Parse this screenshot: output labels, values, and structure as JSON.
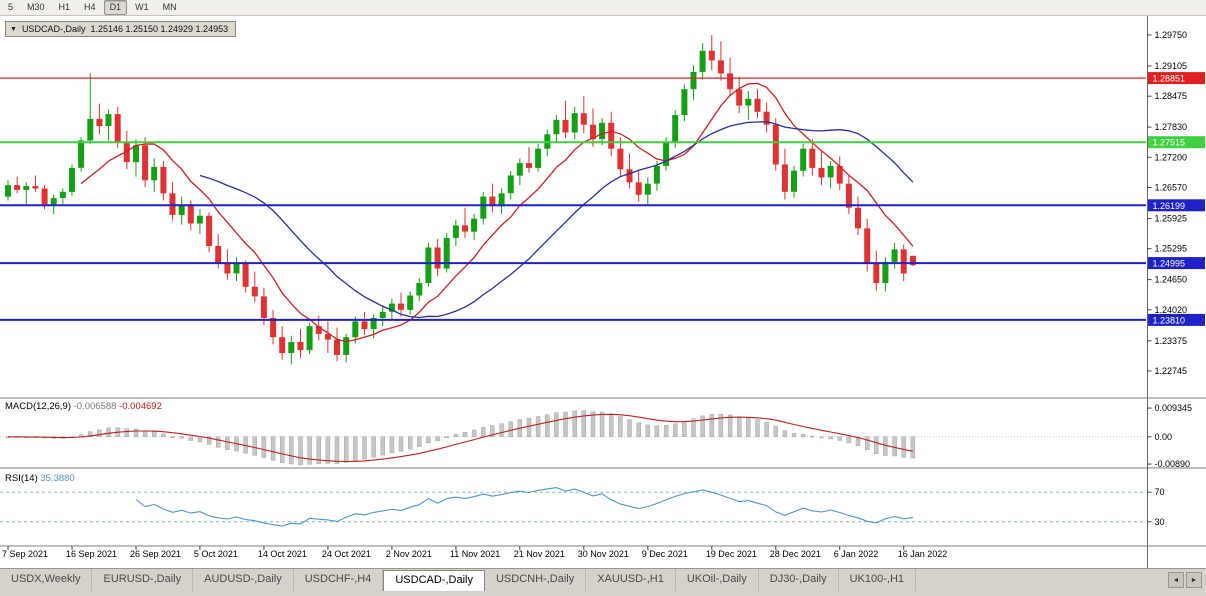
{
  "toolbar": {
    "timeframes": [
      "5",
      "M30",
      "H1",
      "H4",
      "D1",
      "W1",
      "MN"
    ],
    "active": "D1"
  },
  "chart_window": {
    "collapse_icon": "▼",
    "title_symbol": "USDCAD-,Daily",
    "title_ohlc": "1.25146 1.25150 1.24929 1.24953"
  },
  "colors": {
    "candle_up": "#14a014",
    "candle_down": "#e03232",
    "ma_fast": "#d02020",
    "ma_slow": "#2830a0",
    "macd_histogram": "#c6c6c6",
    "macd_signal": "#c02020",
    "rsi_line": "#4f94cd",
    "rsi_level": "#8fb8c8",
    "axis_text": "#000000"
  },
  "chart_data": {
    "type": "candlestick",
    "symbol": "USDCAD-",
    "timeframe": "Daily",
    "price_axis": {
      "top": 1.2975,
      "bottom": 1.22745,
      "ticks": [
        "1.29750",
        "1.29105",
        "1.28475",
        "1.27830",
        "1.27200",
        "1.26570",
        "1.25925",
        "1.25295",
        "1.24650",
        "1.24020",
        "1.23375",
        "1.22745"
      ]
    },
    "levels": [
      {
        "price": 1.28851,
        "label": "1.28851",
        "color": "#e02020",
        "width": 1.2
      },
      {
        "price": 1.27515,
        "label": "1.27515",
        "color": "#3fd03f",
        "width": 2
      },
      {
        "price": 1.26199,
        "label": "1.26199",
        "color": "#2020c8",
        "width": 2
      },
      {
        "price": 1.24995,
        "label": "1.24995",
        "color": "#2020c8",
        "width": 2
      },
      {
        "price": 1.2381,
        "label": "1.23810",
        "color": "#2020c8",
        "width": 2
      }
    ],
    "moving_averages": [
      {
        "period": 9,
        "color": "#d02020"
      },
      {
        "period": 22,
        "color": "#2830a0"
      }
    ],
    "x_labels": [
      "7 Sep 2021",
      "16 Sep 2021",
      "26 Sep 2021",
      "5 Oct 2021",
      "14 Oct 2021",
      "24 Oct 2021",
      "2 Nov 2021",
      "11 Nov 2021",
      "21 Nov 2021",
      "30 Nov 2021",
      "9 Dec 2021",
      "19 Dec 2021",
      "28 Dec 2021",
      "6 Jan 2022",
      "16 Jan 2022"
    ],
    "x_label_indices": [
      0,
      7,
      14,
      21,
      28,
      35,
      42,
      49,
      56,
      63,
      70,
      77,
      84,
      91,
      98
    ],
    "candles": [
      [
        1.2638,
        1.2672,
        1.263,
        1.2662
      ],
      [
        1.2662,
        1.268,
        1.2645,
        1.2652
      ],
      [
        1.2652,
        1.2668,
        1.2622,
        1.266
      ],
      [
        1.266,
        1.2682,
        1.2648,
        1.2655
      ],
      [
        1.2655,
        1.2662,
        1.2612,
        1.2622
      ],
      [
        1.2622,
        1.2642,
        1.2602,
        1.2635
      ],
      [
        1.2635,
        1.2655,
        1.2618,
        1.2648
      ],
      [
        1.2648,
        1.2705,
        1.264,
        1.2698
      ],
      [
        1.2698,
        1.2762,
        1.269,
        1.2755
      ],
      [
        1.2755,
        1.2895,
        1.2748,
        1.28
      ],
      [
        1.28,
        1.2832,
        1.2768,
        1.2785
      ],
      [
        1.2785,
        1.282,
        1.2755,
        1.281
      ],
      [
        1.281,
        1.2825,
        1.274,
        1.2752
      ],
      [
        1.2752,
        1.2775,
        1.2695,
        1.271
      ],
      [
        1.271,
        1.2758,
        1.268,
        1.2745
      ],
      [
        1.2745,
        1.2762,
        1.2658,
        1.2672
      ],
      [
        1.2672,
        1.2718,
        1.2648,
        1.27
      ],
      [
        1.27,
        1.2712,
        1.263,
        1.2645
      ],
      [
        1.2645,
        1.2668,
        1.2588,
        1.26
      ],
      [
        1.26,
        1.2638,
        1.258,
        1.2622
      ],
      [
        1.2622,
        1.263,
        1.2568,
        1.2582
      ],
      [
        1.2582,
        1.2612,
        1.256,
        1.2598
      ],
      [
        1.2598,
        1.2605,
        1.2522,
        1.2535
      ],
      [
        1.2535,
        1.256,
        1.2488,
        1.25
      ],
      [
        1.25,
        1.2528,
        1.2465,
        1.2478
      ],
      [
        1.2478,
        1.2512,
        1.2462,
        1.2498
      ],
      [
        1.2498,
        1.2505,
        1.2438,
        1.245
      ],
      [
        1.245,
        1.2482,
        1.2418,
        1.243
      ],
      [
        1.243,
        1.2448,
        1.237,
        1.2385
      ],
      [
        1.2385,
        1.2402,
        1.233,
        1.2345
      ],
      [
        1.2345,
        1.2368,
        1.2298,
        1.2312
      ],
      [
        1.2312,
        1.2348,
        1.2288,
        1.2335
      ],
      [
        1.2335,
        1.2362,
        1.2302,
        1.2318
      ],
      [
        1.2318,
        1.2375,
        1.231,
        1.2368
      ],
      [
        1.2368,
        1.239,
        1.2338,
        1.2352
      ],
      [
        1.2352,
        1.2378,
        1.2312,
        1.234
      ],
      [
        1.234,
        1.2365,
        1.2295,
        1.2308
      ],
      [
        1.2308,
        1.2352,
        1.2292,
        1.2345
      ],
      [
        1.2345,
        1.2388,
        1.2332,
        1.2378
      ],
      [
        1.2378,
        1.2398,
        1.235,
        1.2362
      ],
      [
        1.2362,
        1.2392,
        1.2342,
        1.2385
      ],
      [
        1.2385,
        1.2412,
        1.2368,
        1.2398
      ],
      [
        1.2398,
        1.2425,
        1.238,
        1.2415
      ],
      [
        1.2415,
        1.2438,
        1.2388,
        1.2402
      ],
      [
        1.2402,
        1.244,
        1.2392,
        1.2432
      ],
      [
        1.2432,
        1.2468,
        1.242,
        1.2458
      ],
      [
        1.2458,
        1.2542,
        1.245,
        1.2532
      ],
      [
        1.2532,
        1.255,
        1.2472,
        1.2488
      ],
      [
        1.2488,
        1.2562,
        1.248,
        1.2552
      ],
      [
        1.2552,
        1.259,
        1.2535,
        1.2578
      ],
      [
        1.2578,
        1.2615,
        1.2552,
        1.2565
      ],
      [
        1.2565,
        1.2602,
        1.2548,
        1.2592
      ],
      [
        1.2592,
        1.2648,
        1.258,
        1.2638
      ],
      [
        1.2638,
        1.2665,
        1.2605,
        1.2618
      ],
      [
        1.2618,
        1.2655,
        1.2602,
        1.2645
      ],
      [
        1.2645,
        1.2692,
        1.2632,
        1.2682
      ],
      [
        1.2682,
        1.2718,
        1.2662,
        1.2708
      ],
      [
        1.2708,
        1.2742,
        1.2688,
        1.2698
      ],
      [
        1.2698,
        1.2748,
        1.269,
        1.2738
      ],
      [
        1.2738,
        1.2778,
        1.2722,
        1.2768
      ],
      [
        1.2768,
        1.2808,
        1.2752,
        1.2798
      ],
      [
        1.2798,
        1.2838,
        1.276,
        1.2772
      ],
      [
        1.2772,
        1.2825,
        1.2758,
        1.2812
      ],
      [
        1.2812,
        1.2848,
        1.277,
        1.2788
      ],
      [
        1.2788,
        1.2822,
        1.2742,
        1.2758
      ],
      [
        1.2758,
        1.2802,
        1.2745,
        1.2792
      ],
      [
        1.2792,
        1.2815,
        1.2722,
        1.2738
      ],
      [
        1.2738,
        1.2762,
        1.268,
        1.2695
      ],
      [
        1.2695,
        1.2728,
        1.2655,
        1.2668
      ],
      [
        1.2668,
        1.2692,
        1.2628,
        1.2642
      ],
      [
        1.2642,
        1.2678,
        1.2622,
        1.2665
      ],
      [
        1.2665,
        1.2712,
        1.265,
        1.2702
      ],
      [
        1.2702,
        1.2762,
        1.2692,
        1.2752
      ],
      [
        1.2752,
        1.2818,
        1.274,
        1.2808
      ],
      [
        1.2808,
        1.2872,
        1.2795,
        1.2862
      ],
      [
        1.2862,
        1.2912,
        1.284,
        1.2898
      ],
      [
        1.2898,
        1.2958,
        1.2882,
        1.2942
      ],
      [
        1.2942,
        1.2975,
        1.2902,
        1.2922
      ],
      [
        1.2922,
        1.2962,
        1.288,
        1.2895
      ],
      [
        1.2895,
        1.2928,
        1.2848,
        1.2862
      ],
      [
        1.2862,
        1.2888,
        1.2812,
        1.2828
      ],
      [
        1.2828,
        1.2858,
        1.2798,
        1.2842
      ],
      [
        1.2842,
        1.2862,
        1.2802,
        1.2815
      ],
      [
        1.2815,
        1.2835,
        1.2772,
        1.2788
      ],
      [
        1.2788,
        1.2802,
        1.2692,
        1.2705
      ],
      [
        1.2705,
        1.2738,
        1.2632,
        1.2648
      ],
      [
        1.2648,
        1.2702,
        1.2635,
        1.2692
      ],
      [
        1.2692,
        1.2748,
        1.268,
        1.2738
      ],
      [
        1.2738,
        1.2758,
        1.2682,
        1.2698
      ],
      [
        1.2698,
        1.2732,
        1.2662,
        1.2678
      ],
      [
        1.2678,
        1.2712,
        1.2655,
        1.2702
      ],
      [
        1.2702,
        1.2722,
        1.2652,
        1.2665
      ],
      [
        1.2665,
        1.2682,
        1.2602,
        1.2615
      ],
      [
        1.2615,
        1.2638,
        1.2558,
        1.2572
      ],
      [
        1.2572,
        1.2592,
        1.2482,
        1.2498
      ],
      [
        1.2498,
        1.2525,
        1.2442,
        1.2458
      ],
      [
        1.2458,
        1.2512,
        1.244,
        1.2502
      ],
      [
        1.2502,
        1.2542,
        1.2488,
        1.2528
      ],
      [
        1.2528,
        1.2538,
        1.2462,
        1.2478
      ],
      [
        1.25146,
        1.2515,
        1.24929,
        1.24953
      ]
    ],
    "indicators": {
      "macd": {
        "label": "MACD(12,26,9)",
        "main_value": "-0.006588",
        "signal_value": "-0.004692",
        "params": [
          12,
          26,
          9
        ],
        "axis_ticks": [
          "0.009345",
          "0.00",
          "-0.00890"
        ]
      },
      "rsi": {
        "label": "RSI(14)",
        "value": "35.3880",
        "period": 14,
        "levels": [
          70,
          30
        ],
        "axis_ticks": [
          "70",
          "30"
        ]
      }
    }
  },
  "bottom_tabs": {
    "tabs": [
      "USDX,Weekly",
      "EURUSD-,Daily",
      "AUDUSD-,Daily",
      "USDCHF-,H4",
      "USDCAD-,Daily",
      "USDCNH-,Daily",
      "XAUUSD-,H1",
      "UKOil-,Daily",
      "DJ30-,Daily",
      "UK100-,H1"
    ],
    "active": "USDCAD-,Daily",
    "scroll_left_icon": "◄",
    "scroll_right_icon": "►"
  }
}
